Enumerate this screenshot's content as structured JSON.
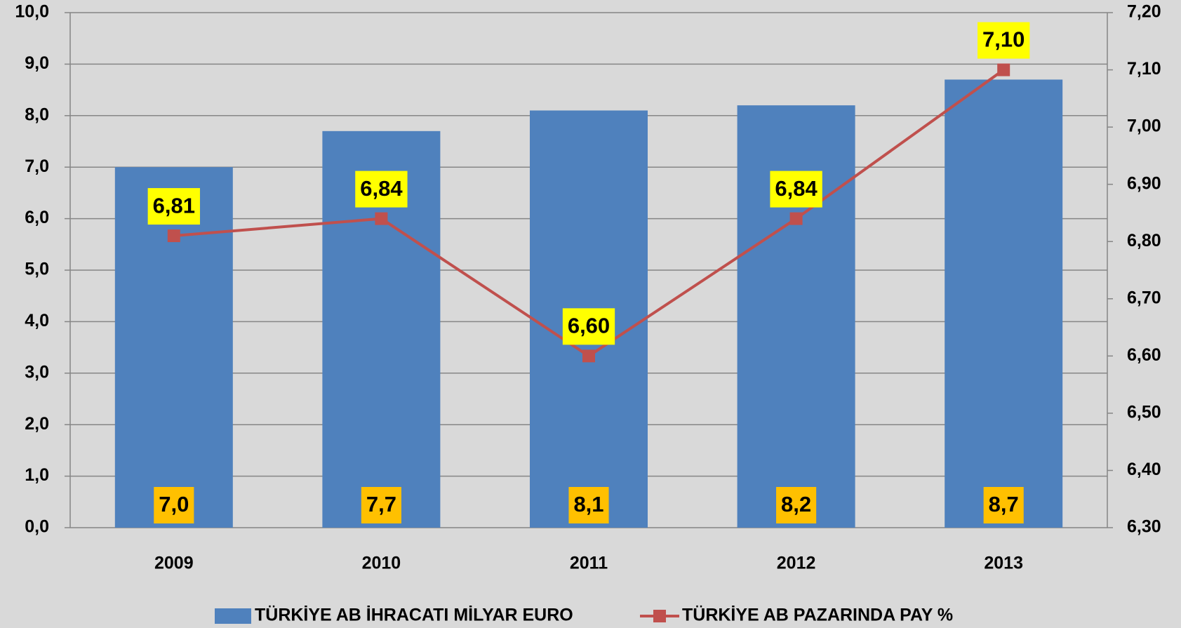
{
  "chart_data": {
    "type": "bar",
    "categories": [
      "2009",
      "2010",
      "2011",
      "2012",
      "2013"
    ],
    "series": [
      {
        "name": "TÜRKİYE AB İHRACATI MİLYAR EURO",
        "color": "#4f81bd",
        "values": [
          7.0,
          7.7,
          8.1,
          8.2,
          8.7
        ],
        "value_labels": [
          "7,0",
          "7,7",
          "8,1",
          "8,2",
          "8,7"
        ],
        "label_color": "#ffc000"
      },
      {
        "name": "TÜRKİYE AB PAZARINDA PAY %",
        "type": "line",
        "axis": "y2",
        "color": "#c0504d",
        "values": [
          6.81,
          6.84,
          6.6,
          6.84,
          7.1
        ],
        "value_labels": [
          "6,81",
          "6,84",
          "6,60",
          "6,84",
          "7,10"
        ],
        "label_color": "#ffff00"
      }
    ],
    "ylim": [
      0,
      10
    ],
    "yticks": [
      {
        "value": 0,
        "label": "0,0"
      },
      {
        "value": 1,
        "label": "1,0"
      },
      {
        "value": 2,
        "label": "2,0"
      },
      {
        "value": 3,
        "label": "3,0"
      },
      {
        "value": 4,
        "label": "4,0"
      },
      {
        "value": 5,
        "label": "5,0"
      },
      {
        "value": 6,
        "label": "6,0"
      },
      {
        "value": 7,
        "label": "7,0"
      },
      {
        "value": 8,
        "label": "8,0"
      },
      {
        "value": 9,
        "label": "9,0"
      },
      {
        "value": 10,
        "label": "10,0"
      }
    ],
    "y2lim": [
      6.3,
      7.2
    ],
    "y2ticks": [
      {
        "value": 6.3,
        "label": "6,30"
      },
      {
        "value": 6.4,
        "label": "6,40"
      },
      {
        "value": 6.5,
        "label": "6,50"
      },
      {
        "value": 6.6,
        "label": "6,60"
      },
      {
        "value": 6.7,
        "label": "6,70"
      },
      {
        "value": 6.8,
        "label": "6,80"
      },
      {
        "value": 6.9,
        "label": "6,90"
      },
      {
        "value": 7.0,
        "label": "7,00"
      },
      {
        "value": 7.1,
        "label": "7,10"
      },
      {
        "value": 7.2,
        "label": "7,20"
      }
    ],
    "grid": true,
    "legend": "bottom"
  }
}
